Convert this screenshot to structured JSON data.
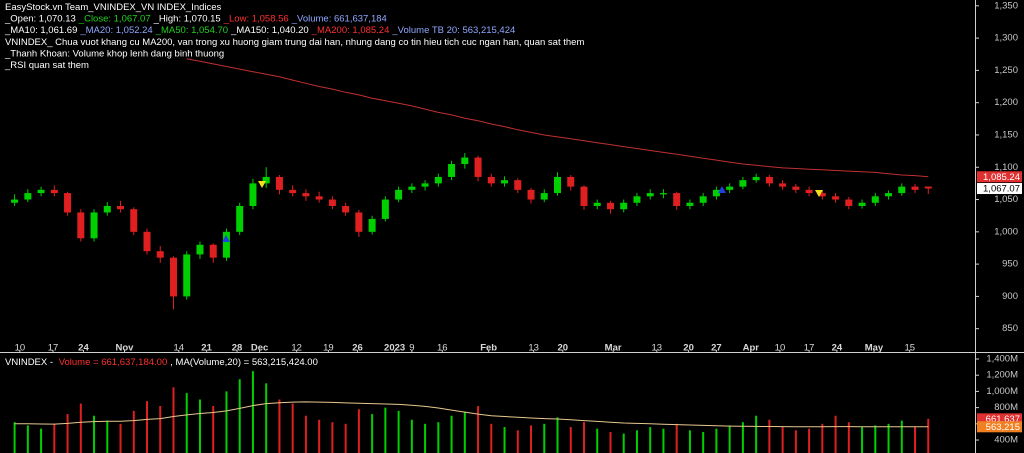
{
  "chart_data": {
    "type": "candlestick",
    "header": {
      "lines": [
        [
          {
            "text": "EasyStock.vn Team_VNINDEX_VN INDEX_Indices",
            "color": "#ffffff"
          }
        ],
        [
          {
            "text": "_Open: 1,070.13",
            "color": "#ffffff"
          },
          {
            "text": "_Close: 1,067.07",
            "color": "#20d020"
          },
          {
            "text": "_High: 1,070.15",
            "color": "#ffffff"
          },
          {
            "text": "_Low: 1,058.56",
            "color": "#ff3030"
          },
          {
            "text": "_Volume: 661,637,184",
            "color": "#8fa8ff"
          }
        ],
        [
          {
            "text": "_MA10: 1,061.69",
            "color": "#ffffff"
          },
          {
            "text": "_MA20: 1,052.24",
            "color": "#8fa8ff"
          },
          {
            "text": "_MA50: 1,054.70",
            "color": "#20d020"
          },
          {
            "text": "_MA150: 1,040.20",
            "color": "#ffffff"
          },
          {
            "text": "_MA200: 1,085.24",
            "color": "#ff3030"
          },
          {
            "text": "_Volume TB 20: 563,215,424",
            "color": "#8fa8ff"
          }
        ],
        [
          {
            "text": "VNINDEX_ Chua vuot khang cu MA200, van trong xu huong giam trung dai han, nhung dang co tin hieu tich cuc ngan han, quan sat them",
            "color": "#ffffff"
          }
        ],
        [
          {
            "text": "_Thanh Khoan: Volume khop lenh dang binh thuong",
            "color": "#ffffff"
          }
        ],
        [
          {
            "text": "_RSI quan sat them",
            "color": "#ffffff"
          }
        ]
      ],
      "volume_line": [
        {
          "text": "VNINDEX - ",
          "color": "#ffffff"
        },
        {
          "text": "Volume = 661,637,184.00",
          "color": "#ff3030"
        },
        {
          "text": ", MA(Volume,20) = 563,215,424.00",
          "color": "#ffffff"
        }
      ]
    },
    "xlim": [
      -0.8,
      72
    ],
    "xticks": [
      {
        "value": 0.4,
        "label": "10"
      },
      {
        "value": 2.9,
        "label": "17"
      },
      {
        "value": 5.2,
        "label": "24"
      },
      {
        "value": 8.3,
        "label": "Nov"
      },
      {
        "value": 12.4,
        "label": "14"
      },
      {
        "value": 14.5,
        "label": "21"
      },
      {
        "value": 16.8,
        "label": "28"
      },
      {
        "value": 18.5,
        "label": "Dec"
      },
      {
        "value": 21.3,
        "label": "12"
      },
      {
        "value": 23.7,
        "label": "19"
      },
      {
        "value": 25.9,
        "label": "26"
      },
      {
        "value": 28.7,
        "label": "2023"
      },
      {
        "value": 30.0,
        "label": "9"
      },
      {
        "value": 32.3,
        "label": "16"
      },
      {
        "value": 35.8,
        "label": "Feb"
      },
      {
        "value": 39.2,
        "label": "13"
      },
      {
        "value": 41.4,
        "label": "20"
      },
      {
        "value": 45.2,
        "label": "Mar"
      },
      {
        "value": 48.5,
        "label": "13"
      },
      {
        "value": 50.9,
        "label": "20"
      },
      {
        "value": 53.0,
        "label": "27"
      },
      {
        "value": 55.6,
        "label": "Apr"
      },
      {
        "value": 57.8,
        "label": "10"
      },
      {
        "value": 60.0,
        "label": "17"
      },
      {
        "value": 62.1,
        "label": "24"
      },
      {
        "value": 64.9,
        "label": "May"
      },
      {
        "value": 67.6,
        "label": "15"
      }
    ],
    "ylim": [
      817,
      1359
    ],
    "yticks": [
      850,
      900,
      950,
      {
        "value": 1000,
        "label": "1,000"
      },
      {
        "value": 1050,
        "label": "1,050"
      },
      {
        "value": 1100,
        "label": "1,100"
      },
      {
        "value": 1150,
        "label": "1,150"
      },
      {
        "value": 1200,
        "label": "1,200"
      },
      {
        "value": 1250,
        "label": "1,250"
      },
      {
        "value": 1300,
        "label": "1,300"
      },
      {
        "value": 1350,
        "label": "1,350"
      }
    ],
    "up_color": "#00d000",
    "down_color": "#e02020",
    "candles": [
      [
        1045,
        1058,
        1040,
        1050
      ],
      [
        1050,
        1066,
        1046,
        1060
      ],
      [
        1060,
        1070,
        1055,
        1065
      ],
      [
        1065,
        1072,
        1055,
        1060
      ],
      [
        1060,
        1062,
        1025,
        1030
      ],
      [
        1030,
        1035,
        985,
        990
      ],
      [
        990,
        1035,
        985,
        1030
      ],
      [
        1030,
        1046,
        1025,
        1040
      ],
      [
        1040,
        1048,
        1030,
        1035
      ],
      [
        1035,
        1038,
        995,
        1000
      ],
      [
        1000,
        1005,
        965,
        970
      ],
      [
        970,
        978,
        952,
        960
      ],
      [
        960,
        962,
        880,
        900
      ],
      [
        900,
        970,
        895,
        965
      ],
      [
        965,
        985,
        958,
        980
      ],
      [
        980,
        982,
        952,
        960
      ],
      [
        960,
        1005,
        955,
        1000
      ],
      [
        1000,
        1045,
        995,
        1040
      ],
      [
        1040,
        1082,
        1035,
        1075
      ],
      [
        1075,
        1100,
        1068,
        1085
      ],
      [
        1085,
        1088,
        1058,
        1065
      ],
      [
        1065,
        1072,
        1055,
        1060
      ],
      [
        1060,
        1066,
        1048,
        1055
      ],
      [
        1055,
        1062,
        1045,
        1050
      ],
      [
        1050,
        1055,
        1035,
        1040
      ],
      [
        1040,
        1045,
        1025,
        1030
      ],
      [
        1030,
        1034,
        992,
        1000
      ],
      [
        1000,
        1025,
        996,
        1020
      ],
      [
        1020,
        1055,
        1016,
        1050
      ],
      [
        1050,
        1070,
        1046,
        1065
      ],
      [
        1065,
        1075,
        1060,
        1070
      ],
      [
        1070,
        1080,
        1064,
        1075
      ],
      [
        1075,
        1090,
        1070,
        1085
      ],
      [
        1085,
        1110,
        1080,
        1105
      ],
      [
        1105,
        1122,
        1098,
        1115
      ],
      [
        1115,
        1118,
        1078,
        1085
      ],
      [
        1085,
        1090,
        1070,
        1075
      ],
      [
        1075,
        1086,
        1070,
        1080
      ],
      [
        1080,
        1083,
        1060,
        1065
      ],
      [
        1065,
        1068,
        1044,
        1050
      ],
      [
        1050,
        1066,
        1046,
        1060
      ],
      [
        1060,
        1092,
        1056,
        1085
      ],
      [
        1085,
        1088,
        1064,
        1070
      ],
      [
        1070,
        1072,
        1034,
        1040
      ],
      [
        1040,
        1050,
        1035,
        1045
      ],
      [
        1045,
        1048,
        1028,
        1035
      ],
      [
        1035,
        1050,
        1030,
        1045
      ],
      [
        1045,
        1060,
        1040,
        1055
      ],
      [
        1055,
        1066,
        1050,
        1060
      ],
      [
        1058,
        1066,
        1052,
        1060
      ],
      [
        1060,
        1062,
        1034,
        1040
      ],
      [
        1040,
        1050,
        1035,
        1045
      ],
      [
        1045,
        1060,
        1040,
        1055
      ],
      [
        1055,
        1070,
        1050,
        1065
      ],
      [
        1065,
        1075,
        1060,
        1070
      ],
      [
        1070,
        1085,
        1066,
        1080
      ],
      [
        1080,
        1090,
        1076,
        1085
      ],
      [
        1085,
        1088,
        1070,
        1075
      ],
      [
        1075,
        1080,
        1065,
        1070
      ],
      [
        1070,
        1074,
        1060,
        1065
      ],
      [
        1065,
        1070,
        1055,
        1060
      ],
      [
        1060,
        1064,
        1050,
        1055
      ],
      [
        1055,
        1060,
        1045,
        1050
      ],
      [
        1050,
        1054,
        1035,
        1040
      ],
      [
        1040,
        1050,
        1036,
        1045
      ],
      [
        1045,
        1060,
        1040,
        1055
      ],
      [
        1055,
        1064,
        1050,
        1060
      ],
      [
        1060,
        1075,
        1056,
        1070
      ],
      [
        1070,
        1074,
        1060,
        1065
      ],
      [
        1070.13,
        1070.15,
        1058.56,
        1067.07
      ]
    ],
    "ma200": {
      "color": "#c03030",
      "values": [
        null,
        null,
        null,
        null,
        null,
        null,
        null,
        null,
        null,
        null,
        null,
        null,
        null,
        1268,
        1264,
        1260,
        1256,
        1252,
        1248,
        1244,
        1240,
        1235,
        1230,
        1225,
        1221,
        1216,
        1212,
        1207,
        1203,
        1199,
        1195,
        1190,
        1185,
        1181,
        1176,
        1172,
        1167,
        1163,
        1158,
        1154,
        1150,
        1147,
        1144,
        1141,
        1138,
        1135,
        1132,
        1129,
        1126,
        1123,
        1120,
        1117,
        1114,
        1111,
        1108,
        1105,
        1103,
        1101,
        1099,
        1098,
        1097,
        1096,
        1095,
        1094,
        1093,
        1092,
        1090,
        1088,
        1087,
        1085.24
      ]
    },
    "price_badges": [
      {
        "value": 1085.24,
        "label": "1,085.24",
        "color": "#e03030",
        "text_color": "#ffffff"
      },
      {
        "value": 1067.07,
        "label": "1,067.07",
        "color": "#ffffff",
        "text_color": "#000000"
      }
    ],
    "volume": {
      "ylim": [
        240,
        1474
      ],
      "yticks": [
        {
          "value": 400,
          "label": "400M"
        },
        {
          "value": 600,
          "label": "600M"
        },
        {
          "value": 800,
          "label": "800M"
        },
        {
          "value": 1000,
          "label": "1,000M"
        },
        {
          "value": 1200,
          "label": "1,200M"
        },
        {
          "value": 1400,
          "label": "1,400M"
        }
      ],
      "values": [
        620,
        580,
        540,
        600,
        720,
        850,
        700,
        640,
        600,
        760,
        880,
        820,
        1050,
        980,
        900,
        820,
        1000,
        1150,
        1250,
        1100,
        900,
        850,
        700,
        650,
        620,
        600,
        780,
        720,
        800,
        760,
        650,
        600,
        620,
        700,
        750,
        820,
        600,
        560,
        520,
        580,
        600,
        680,
        560,
        620,
        540,
        500,
        480,
        520,
        560,
        540,
        600,
        520,
        500,
        540,
        580,
        620,
        700,
        650,
        560,
        520,
        540,
        600,
        700,
        620,
        560,
        580,
        600,
        640,
        560,
        661.64
      ],
      "ma20": {
        "color": "#e8c890",
        "values": [
          600,
          600,
          598,
          597,
          605,
          620,
          628,
          632,
          633,
          640,
          655,
          665,
          690,
          710,
          728,
          740,
          760,
          790,
          825,
          850,
          860,
          868,
          870,
          868,
          864,
          858,
          855,
          850,
          845,
          840,
          830,
          815,
          795,
          770,
          745,
          720,
          700,
          690,
          680,
          672,
          665,
          660,
          650,
          640,
          630,
          620,
          610,
          605,
          600,
          595,
          590,
          585,
          580,
          576,
          572,
          570,
          568,
          567,
          566,
          565,
          565,
          565,
          566,
          566,
          565,
          564,
          564,
          564,
          563,
          563.22
        ]
      },
      "badges": [
        {
          "value": 661.64,
          "label": "661,637",
          "color": "#e03030",
          "text_color": "#ffffff"
        },
        {
          "value": 563.22,
          "label": "563,215",
          "color": "#f08020",
          "text_color": "#ffffff"
        }
      ]
    }
  }
}
